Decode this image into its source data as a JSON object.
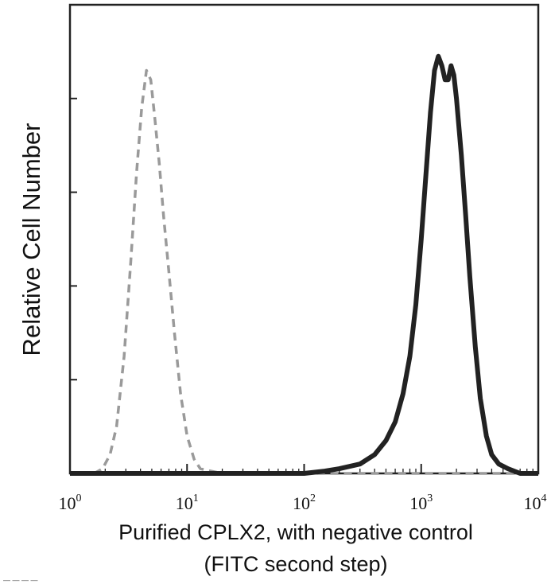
{
  "chart_data": {
    "type": "line",
    "title": "",
    "xlabel": "Purified CPLX2, with negative control",
    "xlabel_line2": "(FITC second step)",
    "ylabel": "Relative Cell Number",
    "x_scale": "log",
    "xlim": [
      1,
      10000
    ],
    "ylim": [
      0,
      100
    ],
    "x_ticks": [
      {
        "value": 1,
        "base": "10",
        "exp": "0"
      },
      {
        "value": 10,
        "base": "10",
        "exp": "1"
      },
      {
        "value": 100,
        "base": "10",
        "exp": "2"
      },
      {
        "value": 1000,
        "base": "10",
        "exp": "3"
      },
      {
        "value": 10000,
        "base": "10",
        "exp": "4"
      }
    ],
    "y_ticks": [
      0,
      20,
      40,
      60,
      80,
      100
    ],
    "grid": false,
    "legend": "none",
    "series": [
      {
        "style": "dashed-gray",
        "color": "#9a9a9a",
        "x": [
          1.6,
          1.9,
          2.2,
          2.5,
          2.9,
          3.3,
          3.7,
          4.1,
          4.5,
          4.9,
          5.3,
          5.8,
          6.3,
          7.0,
          7.8,
          8.8,
          10,
          11.5,
          13,
          16,
          20,
          40,
          100,
          1000,
          10000
        ],
        "y": [
          0,
          1,
          4,
          10,
          25,
          45,
          64,
          78,
          86,
          84,
          76,
          66,
          55,
          43,
          30,
          17,
          8,
          3,
          1,
          0.5,
          0,
          0,
          0,
          0,
          0
        ]
      },
      {
        "style": "solid-dark",
        "color": "#222222",
        "x": [
          1,
          100,
          150,
          200,
          300,
          400,
          500,
          600,
          700,
          800,
          900,
          1000,
          1100,
          1200,
          1300,
          1400,
          1500,
          1600,
          1700,
          1800,
          1900,
          2000,
          2200,
          2400,
          2600,
          2900,
          3200,
          3600,
          4000,
          4600,
          5500,
          7000,
          10000
        ],
        "y": [
          0,
          0,
          0.5,
          1,
          2,
          4,
          7,
          11,
          17,
          25,
          36,
          50,
          64,
          77,
          86,
          89,
          87,
          84,
          84,
          87,
          85,
          80,
          68,
          55,
          42,
          27,
          16,
          8,
          4,
          2,
          1,
          0,
          0
        ]
      }
    ]
  },
  "footer_text": "— — — —"
}
